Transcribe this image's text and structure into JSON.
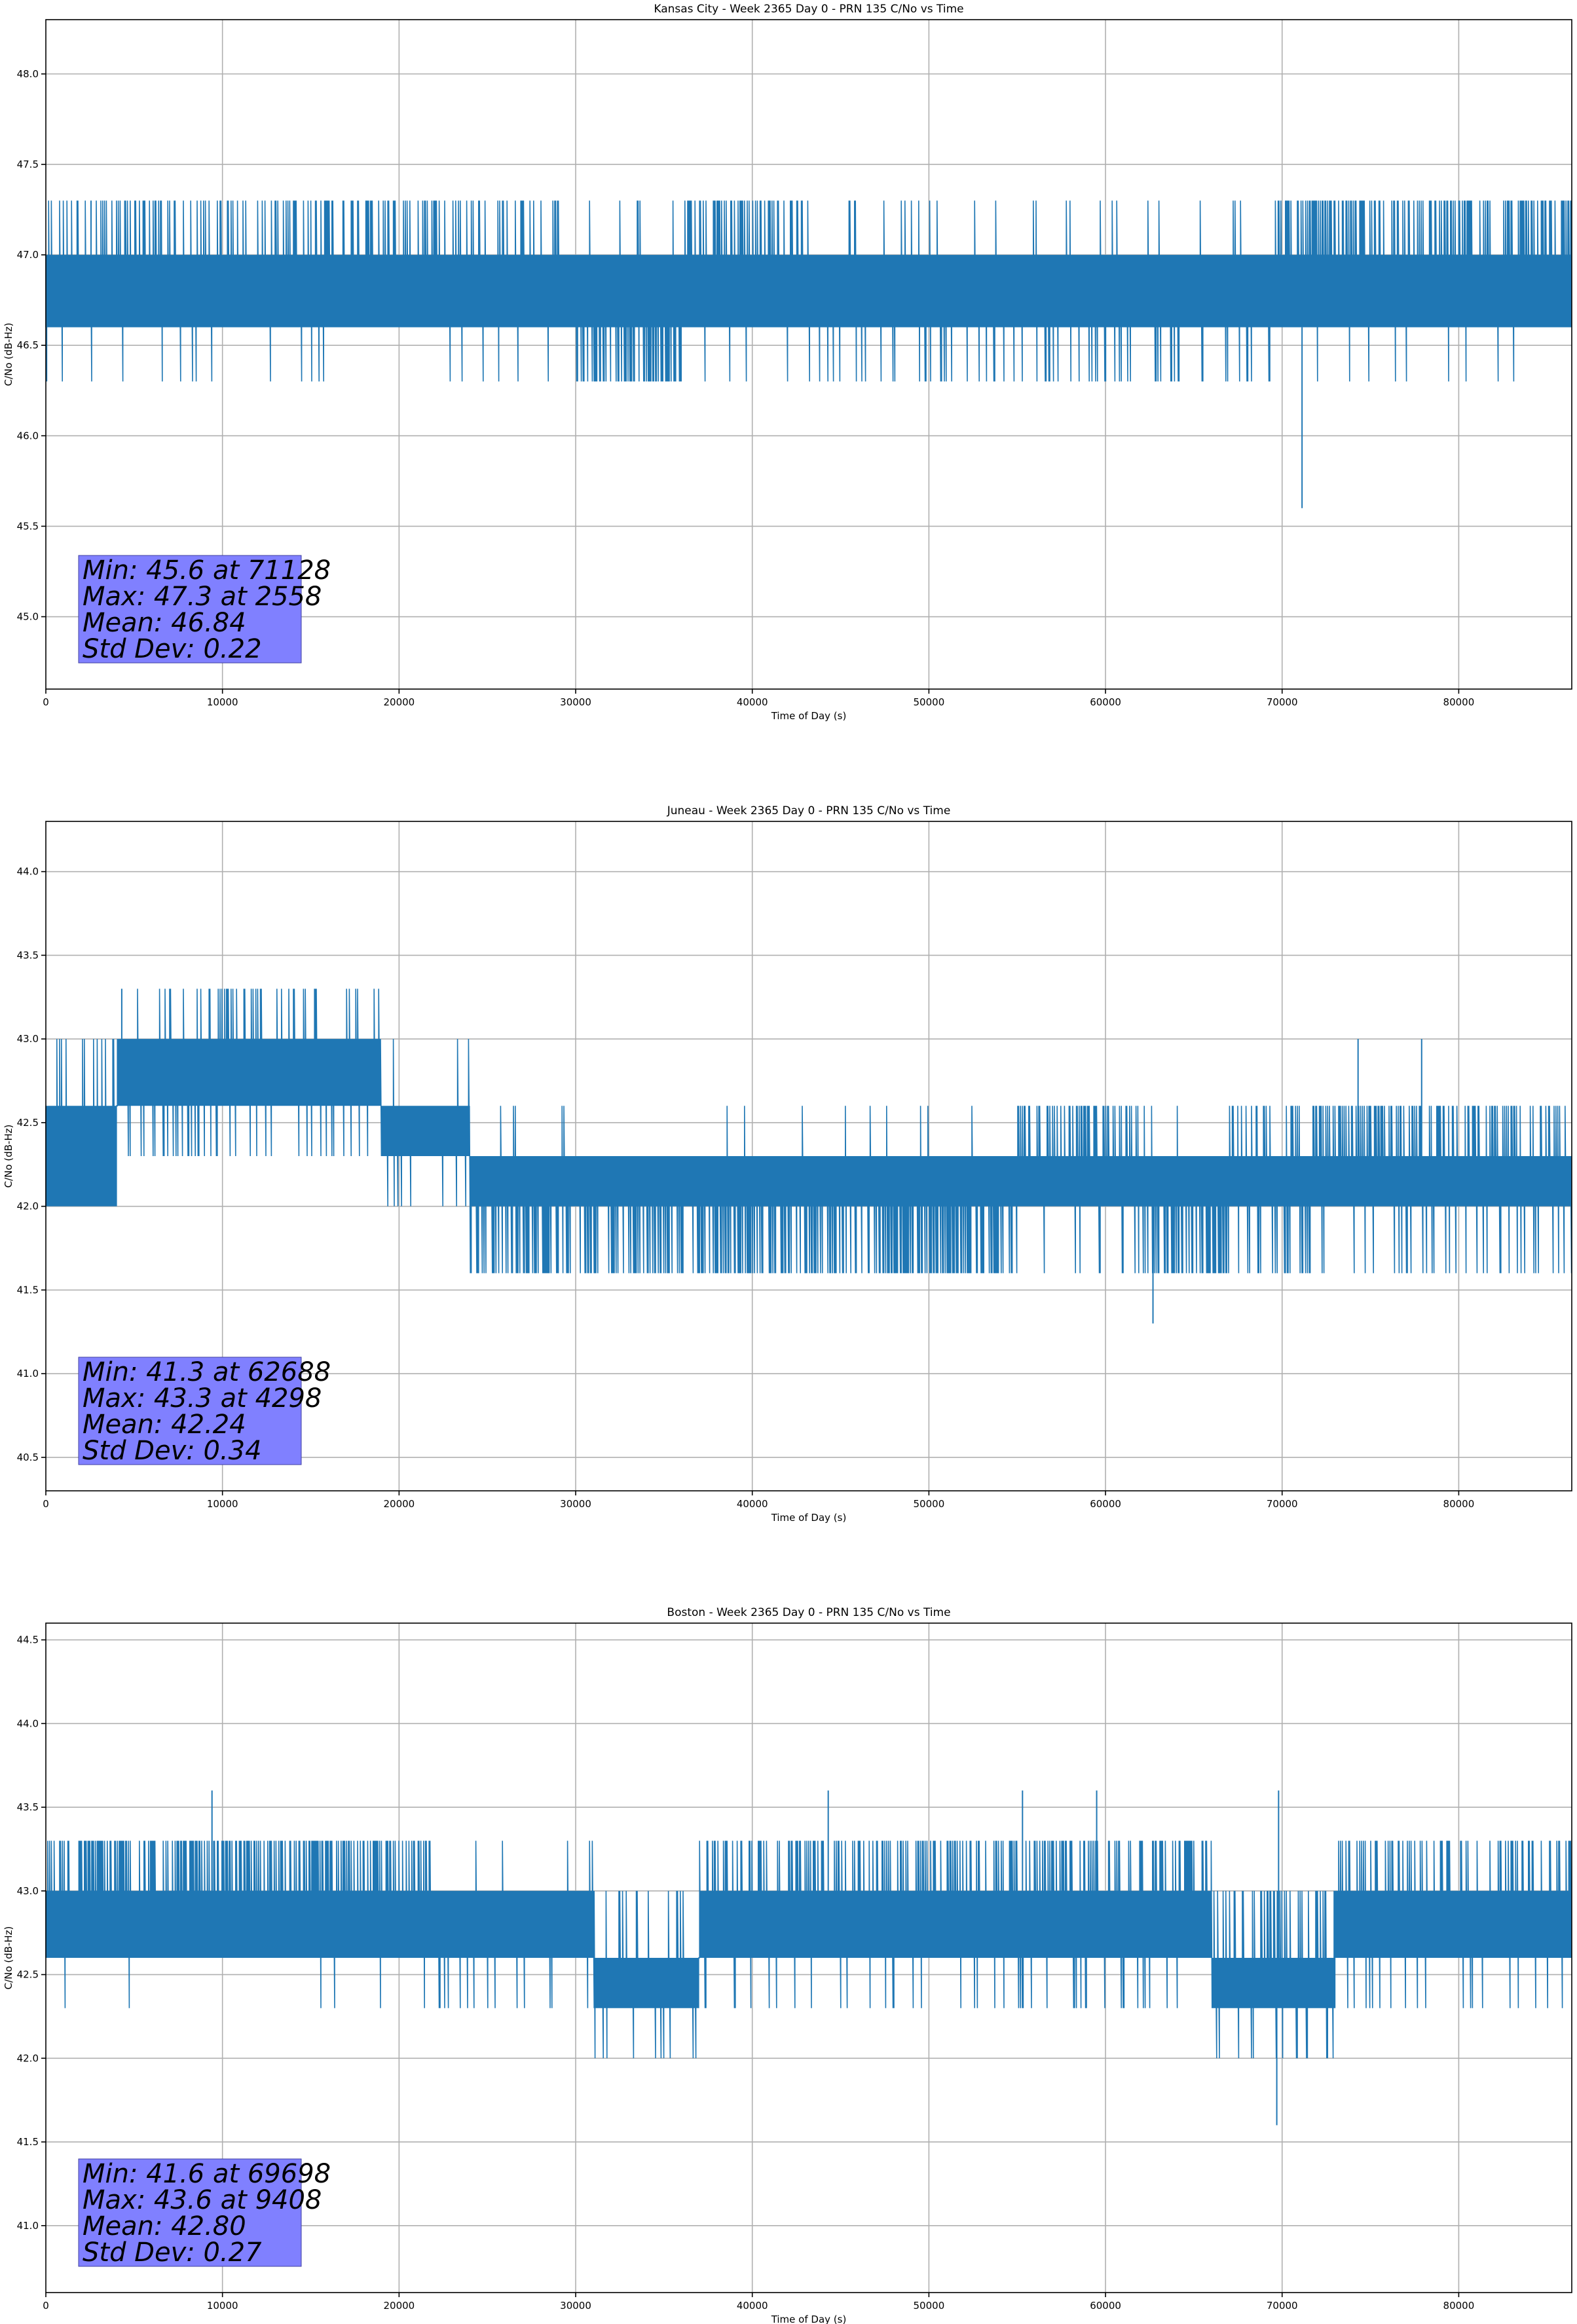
{
  "colors": {
    "series": "#1f77b4",
    "stats_box": "#8080ff",
    "grid": "#b0b0b0"
  },
  "chart_data": [
    {
      "type": "line",
      "title": "Kansas City - Week 2365 Day 0 - PRN 135 C/No vs Time",
      "xlabel": "Time of Day (s)",
      "ylabel": "C/No (dB-Hz)",
      "xlim": [
        0,
        86400
      ],
      "ylim": [
        44.6,
        48.3
      ],
      "xticks": [
        0,
        10000,
        20000,
        30000,
        40000,
        50000,
        60000,
        70000,
        80000
      ],
      "yticks": [
        45.0,
        45.5,
        46.0,
        46.5,
        47.0,
        47.5,
        48.0
      ],
      "grid": true,
      "series": [
        {
          "name": "C/No",
          "segments": [
            {
              "x0": 0,
              "x1": 30000,
              "base": [
                46.6,
                47.0
              ],
              "up": 47.3,
              "down": 46.3,
              "up_p": 0.28,
              "down_p": 0.03
            },
            {
              "x0": 30000,
              "x1": 36000,
              "base": [
                46.6,
                47.0
              ],
              "up": 47.3,
              "down": 46.3,
              "up_p": 0.02,
              "down_p": 0.55
            },
            {
              "x0": 36000,
              "x1": 43000,
              "base": [
                46.6,
                47.0
              ],
              "up": 47.3,
              "down": 46.3,
              "up_p": 0.35,
              "down_p": 0.04
            },
            {
              "x0": 43000,
              "x1": 69500,
              "base": [
                46.6,
                47.0
              ],
              "up": 47.3,
              "down": 46.3,
              "up_p": 0.05,
              "down_p": 0.12
            },
            {
              "x0": 69500,
              "x1": 86400,
              "base": [
                46.6,
                47.0
              ],
              "up": 47.3,
              "down": 46.3,
              "up_p": 0.45,
              "down_p": 0.03
            }
          ],
          "extremes": [
            {
              "x": 71128,
              "y": 45.6
            },
            {
              "x": 2558,
              "y": 47.3
            }
          ]
        }
      ],
      "stats": {
        "min": "Min: 45.6 at 71128",
        "max": "Max: 47.3 at 2558",
        "mean": "Mean: 46.84",
        "std": "Std Dev: 0.22"
      }
    },
    {
      "type": "line",
      "title": "Juneau - Week 2365 Day 0 - PRN 135 C/No vs Time",
      "xlabel": "Time of Day (s)",
      "ylabel": "C/No (dB-Hz)",
      "xlim": [
        0,
        86400
      ],
      "ylim": [
        40.3,
        44.3
      ],
      "xticks": [
        0,
        10000,
        20000,
        30000,
        40000,
        50000,
        60000,
        70000,
        80000
      ],
      "yticks": [
        40.5,
        41.0,
        41.5,
        42.0,
        42.5,
        43.0,
        43.5,
        44.0
      ],
      "grid": true,
      "series": [
        {
          "name": "C/No",
          "segments": [
            {
              "x0": 0,
              "x1": 4000,
              "base": [
                42.0,
                42.6
              ],
              "up": 43.0,
              "down": 42.0,
              "up_p": 0.15,
              "down_p": 0.05
            },
            {
              "x0": 4000,
              "x1": 19000,
              "base": [
                42.6,
                43.0
              ],
              "up": 43.3,
              "down": 42.3,
              "up_p": 0.15,
              "down_p": 0.15
            },
            {
              "x0": 19000,
              "x1": 24000,
              "base": [
                42.3,
                42.6
              ],
              "up": 43.0,
              "down": 42.0,
              "up_p": 0.06,
              "down_p": 0.08
            },
            {
              "x0": 24000,
              "x1": 55000,
              "base": [
                42.0,
                42.3
              ],
              "up": 42.6,
              "down": 41.6,
              "up_p": 0.03,
              "down_p": 0.45
            },
            {
              "x0": 55000,
              "x1": 62000,
              "base": [
                42.0,
                42.3
              ],
              "up": 42.6,
              "down": 41.6,
              "up_p": 0.35,
              "down_p": 0.08
            },
            {
              "x0": 62000,
              "x1": 67000,
              "base": [
                42.0,
                42.3
              ],
              "up": 42.6,
              "down": 41.6,
              "up_p": 0.05,
              "down_p": 0.55
            },
            {
              "x0": 67000,
              "x1": 86400,
              "base": [
                42.0,
                42.3
              ],
              "up": 42.6,
              "down": 41.6,
              "up_p": 0.35,
              "down_p": 0.15
            }
          ],
          "extremes": [
            {
              "x": 62688,
              "y": 41.3
            },
            {
              "x": 4298,
              "y": 43.3
            },
            {
              "x": 74300,
              "y": 43.0
            },
            {
              "x": 77900,
              "y": 43.0
            }
          ]
        }
      ],
      "stats": {
        "min": "Min: 41.3 at 62688",
        "max": "Max: 43.3 at 4298",
        "mean": "Mean: 42.24",
        "std": "Std Dev: 0.34"
      }
    },
    {
      "type": "line",
      "title": "Boston - Week 2365 Day 0 - PRN 135 C/No vs Time",
      "xlabel": "Time of Day (s)",
      "ylabel": "C/No (dB-Hz)",
      "xlim": [
        0,
        86400
      ],
      "ylim": [
        40.6,
        44.6
      ],
      "xticks": [
        0,
        10000,
        20000,
        30000,
        40000,
        50000,
        60000,
        70000,
        80000
      ],
      "yticks": [
        41.0,
        41.5,
        42.0,
        42.5,
        43.0,
        43.5,
        44.0,
        44.5
      ],
      "grid": true,
      "series": [
        {
          "name": "C/No",
          "segments": [
            {
              "x0": 0,
              "x1": 22000,
              "base": [
                42.6,
                43.0
              ],
              "up": 43.3,
              "down": 42.3,
              "up_p": 0.45,
              "down_p": 0.02
            },
            {
              "x0": 22000,
              "x1": 31000,
              "base": [
                42.6,
                43.0
              ],
              "up": 43.3,
              "down": 42.3,
              "up_p": 0.05,
              "down_p": 0.12
            },
            {
              "x0": 31000,
              "x1": 37000,
              "base": [
                42.3,
                42.6
              ],
              "up": 43.0,
              "down": 42.0,
              "up_p": 0.15,
              "down_p": 0.05
            },
            {
              "x0": 37000,
              "x1": 55000,
              "base": [
                42.6,
                43.0
              ],
              "up": 43.3,
              "down": 42.3,
              "up_p": 0.35,
              "down_p": 0.08
            },
            {
              "x0": 55000,
              "x1": 66000,
              "base": [
                42.6,
                43.0
              ],
              "up": 43.3,
              "down": 42.3,
              "up_p": 0.35,
              "down_p": 0.12
            },
            {
              "x0": 66000,
              "x1": 73000,
              "base": [
                42.3,
                42.6
              ],
              "up": 43.0,
              "down": 42.0,
              "up_p": 0.25,
              "down_p": 0.12
            },
            {
              "x0": 73000,
              "x1": 86400,
              "base": [
                42.6,
                43.0
              ],
              "up": 43.3,
              "down": 42.3,
              "up_p": 0.3,
              "down_p": 0.06
            }
          ],
          "extremes": [
            {
              "x": 69698,
              "y": 41.6
            },
            {
              "x": 9408,
              "y": 43.6
            },
            {
              "x": 44300,
              "y": 43.6
            },
            {
              "x": 55300,
              "y": 43.6
            },
            {
              "x": 59500,
              "y": 43.6
            },
            {
              "x": 69800,
              "y": 43.6
            }
          ]
        }
      ],
      "stats": {
        "min": "Min: 41.6 at 69698",
        "max": "Max: 43.6 at 9408",
        "mean": "Mean: 42.80",
        "std": "Std Dev: 0.27"
      }
    }
  ]
}
